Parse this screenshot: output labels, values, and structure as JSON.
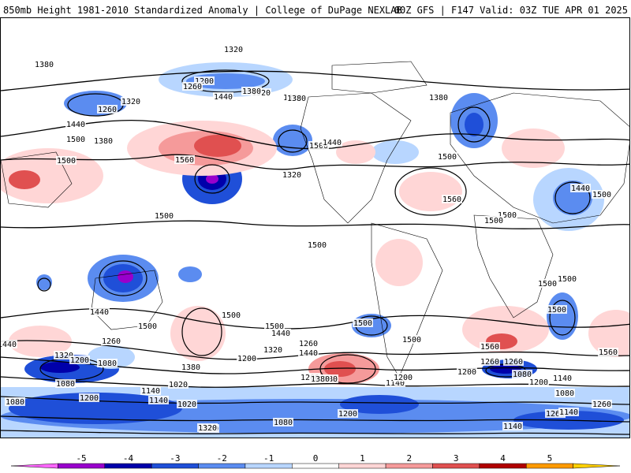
{
  "header": {
    "left_title": "850mb Height 1981-2010 Standardized Anomaly | College of DuPage NEXLAB",
    "right_title": "00Z GFS | F147 Valid: 03Z TUE APR 01 2025"
  },
  "colorbar": {
    "ticks": [
      "-5",
      "-4",
      "-3",
      "-2",
      "-1",
      "0",
      "1",
      "2",
      "3",
      "4",
      "5"
    ],
    "colors": [
      "#ff66ff",
      "#9900cc",
      "#0000aa",
      "#1f4fd8",
      "#5b8cf0",
      "#b8d6ff",
      "#ffffff",
      "#ffd6d6",
      "#f59a9a",
      "#e05050",
      "#b00000",
      "#ff9a00",
      "#ffd000"
    ]
  },
  "map": {
    "contour_labels": [
      "1320",
      "1200",
      "1380",
      "1320",
      "1260",
      "1260",
      "1440",
      "1320",
      "1380",
      "1320",
      "1380",
      "1500",
      "1440",
      "1560",
      "1500",
      "1380",
      "1500",
      "1440",
      "1560",
      "1380",
      "1500",
      "1500",
      "1440",
      "1500",
      "1500",
      "1320",
      "1500",
      "1500",
      "1440",
      "1500",
      "1500",
      "1500",
      "1500",
      "1500",
      "1500",
      "1440",
      "1440",
      "1560",
      "1320",
      "1260",
      "1200",
      "1080",
      "1080",
      "1200",
      "1140",
      "1020",
      "1080",
      "1140",
      "1200",
      "1320",
      "1380",
      "1260",
      "1200",
      "1380",
      "1200",
      "1260",
      "1140",
      "1200",
      "1080",
      "1140",
      "1020",
      "1080",
      "1200",
      "1260",
      "1140",
      "1200",
      "1320",
      "1440",
      "1260",
      "1560",
      "1380",
      "1080",
      "1200",
      "1140",
      "1500",
      "1500",
      "1260"
    ],
    "anomaly_colors": {
      "neg_light": "#b8d6ff",
      "neg_med": "#5b8cf0",
      "neg_strong": "#1f4fd8",
      "neg_deep": "#0000aa",
      "neg_extreme": "#9900cc",
      "pos_light": "#ffd6d6",
      "pos_med": "#f59a9a",
      "pos_strong": "#e05050"
    }
  }
}
